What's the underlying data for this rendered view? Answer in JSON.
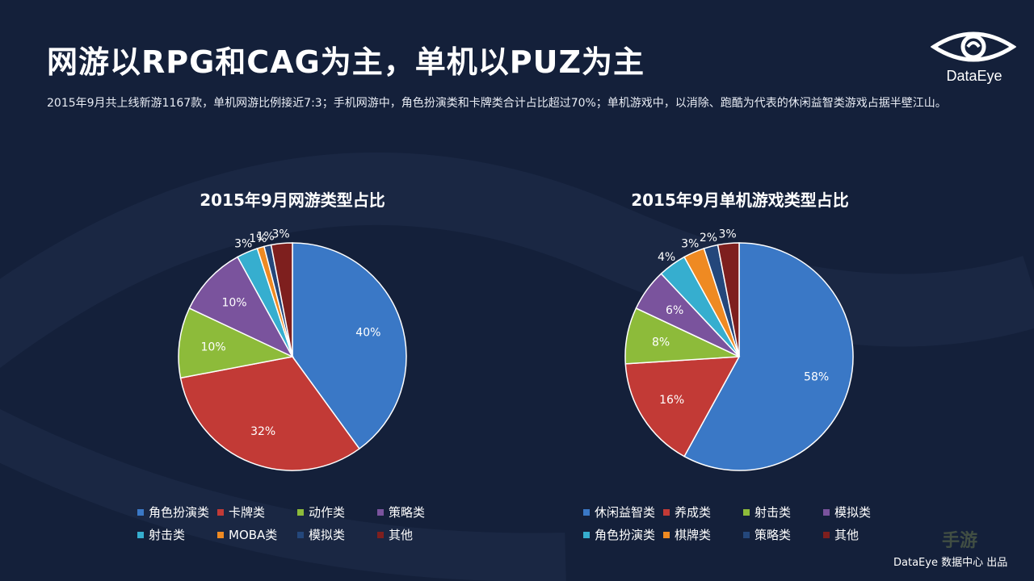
{
  "slide": {
    "title": "网游以RPG和CAG为主，单机以PUZ为主",
    "subtitle": "2015年9月共上线新游1167款，单机网游比例接近7:3；手机网游中，角色扮演类和卡牌类合计占比超过70%；单机游戏中，以消除、跑酷为代表的休闲益智类游戏占据半壁江山。",
    "logo_text": "DataEye",
    "footer": "DataEye 数据中心 出品",
    "watermark_text": "手游"
  },
  "chart_data": [
    {
      "type": "pie",
      "title": "2015年9月网游类型占比",
      "categories": [
        "角色扮演类",
        "卡牌类",
        "动作类",
        "策略类",
        "射击类",
        "MOBA类",
        "模拟类",
        "其他"
      ],
      "values": [
        40,
        32,
        10,
        10,
        3,
        1,
        1,
        3
      ],
      "labels": [
        "40%",
        "32%",
        "10%",
        "10%",
        "3%",
        "1%",
        "1%",
        "3%"
      ],
      "colors": [
        "#3a78c6",
        "#c23a36",
        "#8dbb3a",
        "#7a539d",
        "#36aecf",
        "#ef8a22",
        "#24477b",
        "#7e1f1e"
      ],
      "legend": "bottom"
    },
    {
      "type": "pie",
      "title": "2015年9月单机游戏类型占比",
      "categories": [
        "休闲益智类",
        "养成类",
        "射击类",
        "模拟类",
        "角色扮演类",
        "棋牌类",
        "策略类",
        "其他"
      ],
      "values": [
        58,
        16,
        8,
        6,
        4,
        3,
        2,
        3
      ],
      "labels": [
        "58%",
        "16%",
        "8%",
        "6%",
        "4%",
        "3%",
        "2%",
        "3%"
      ],
      "colors": [
        "#3a78c6",
        "#c23a36",
        "#8dbb3a",
        "#7a539d",
        "#36aecf",
        "#ef8a22",
        "#24477b",
        "#7e1f1e"
      ],
      "legend": "bottom"
    }
  ]
}
